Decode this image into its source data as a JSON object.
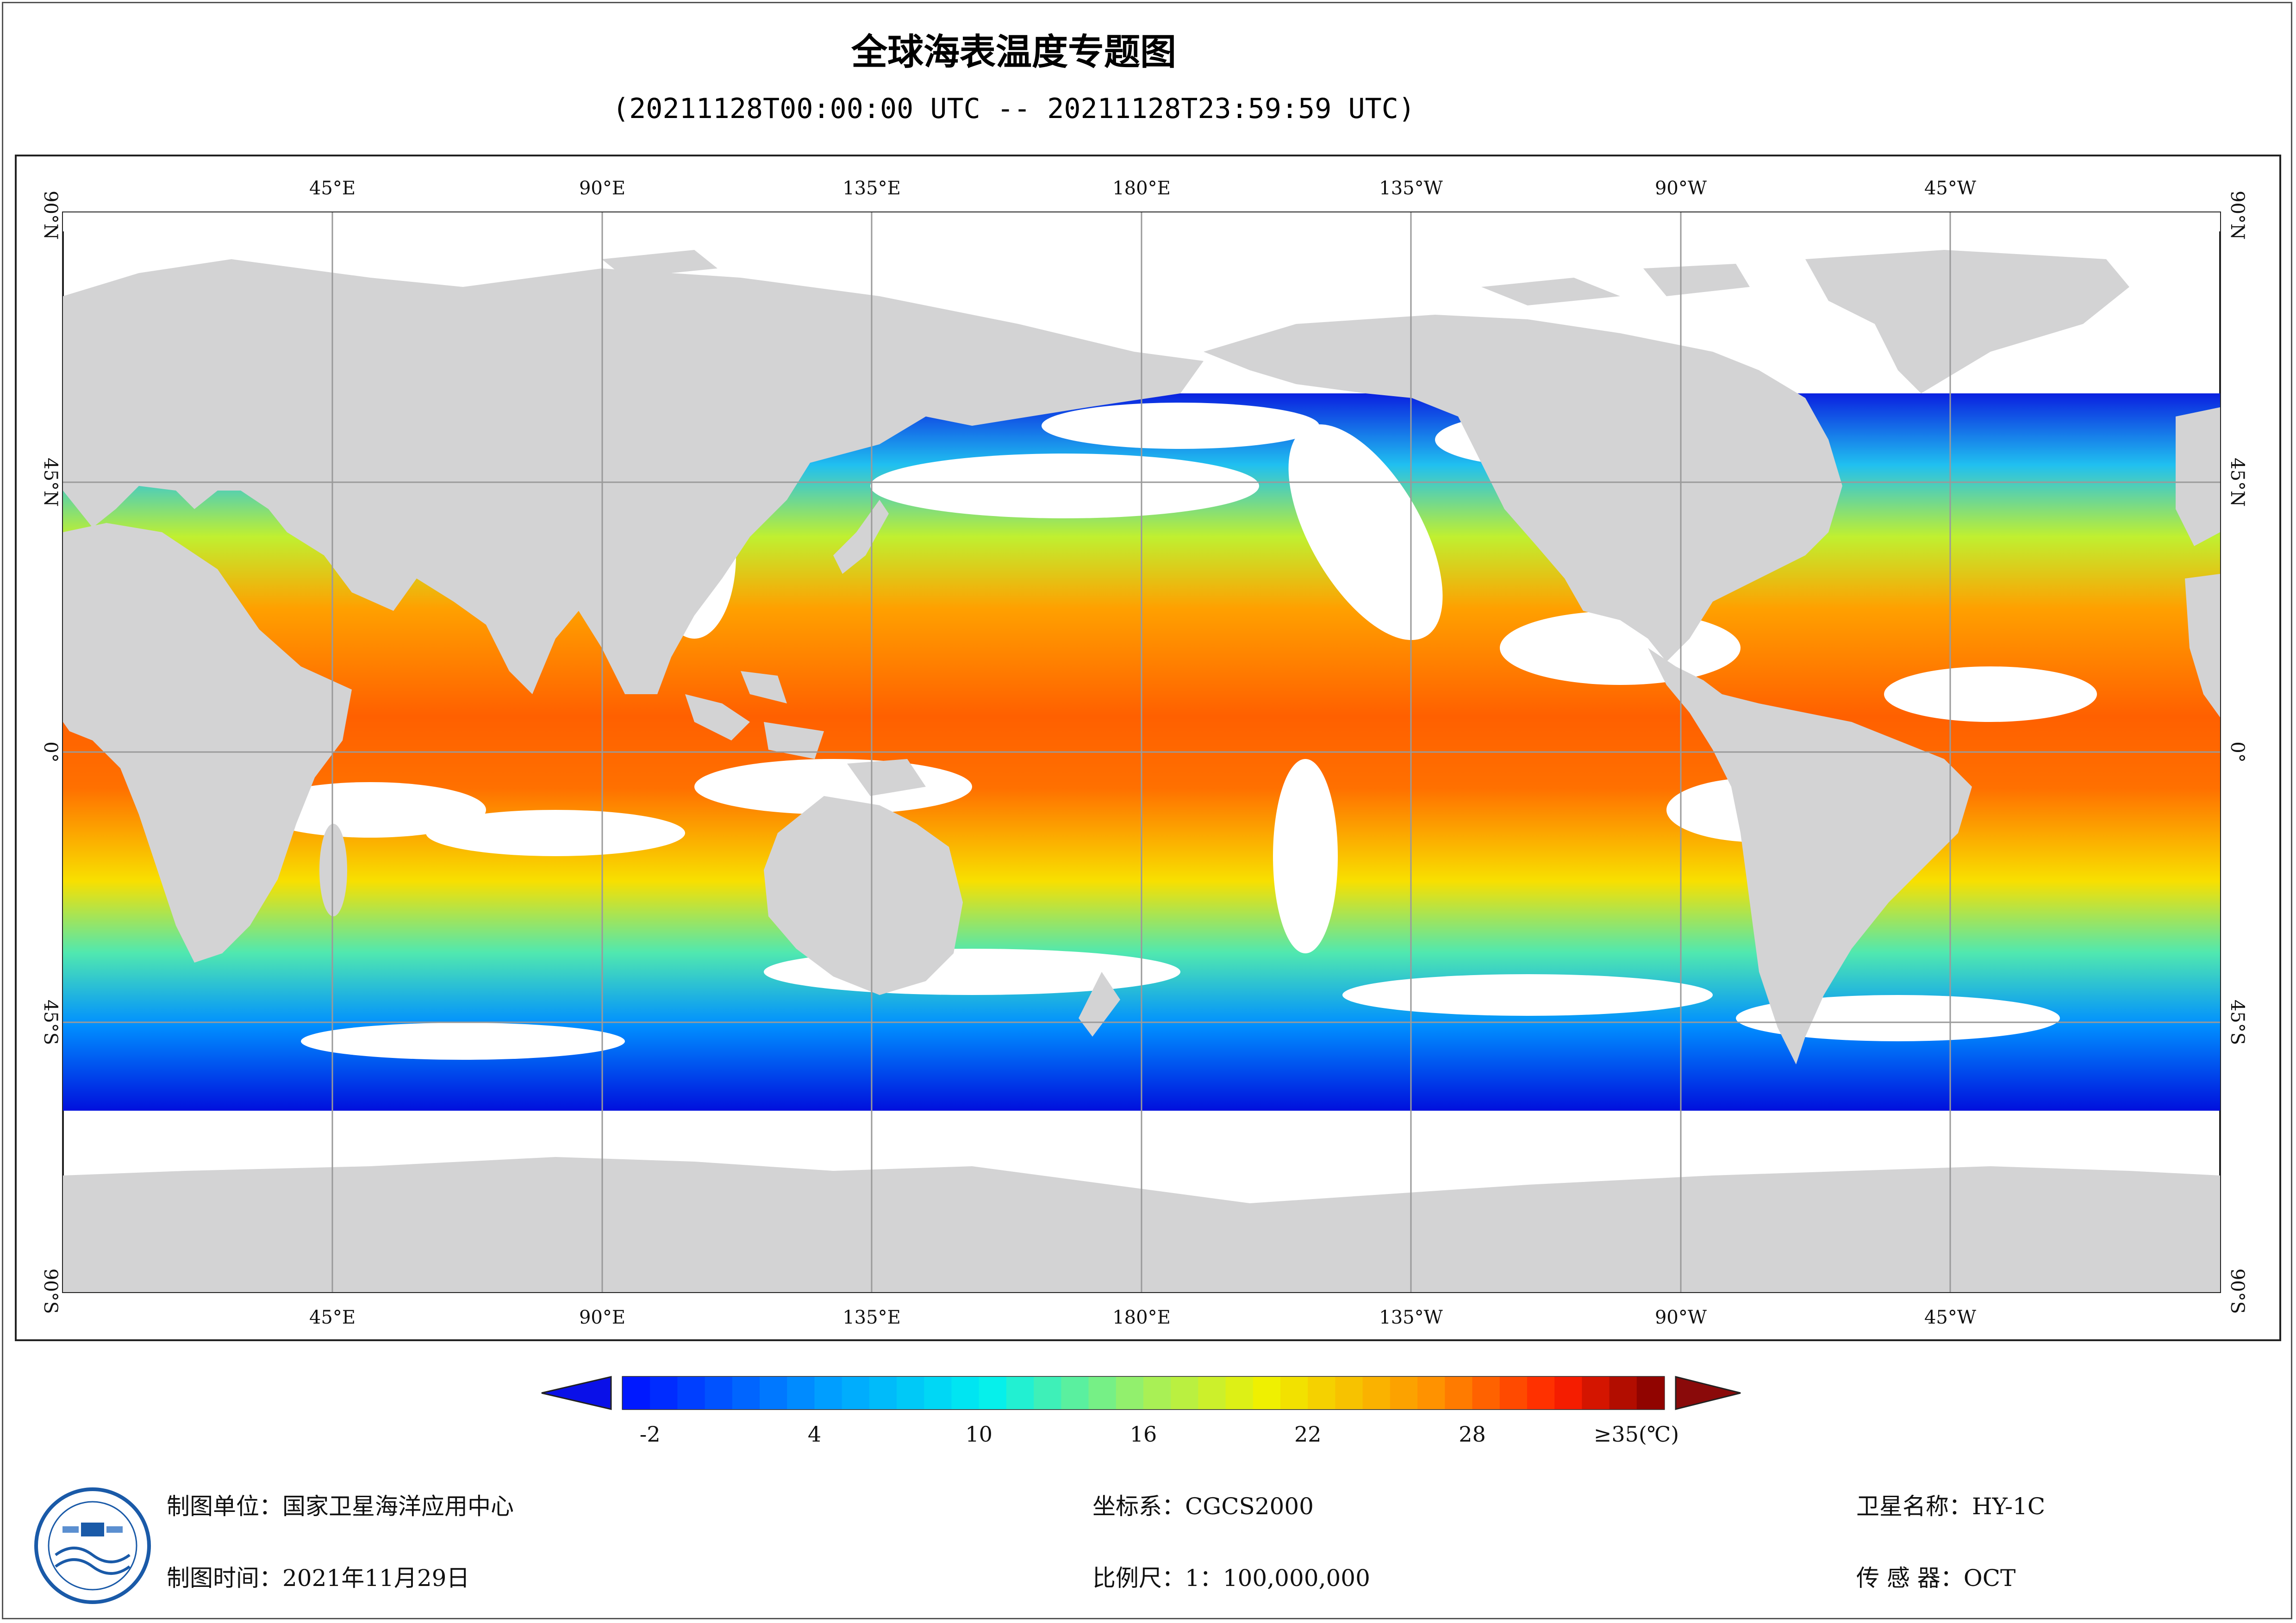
{
  "header": {
    "title": "全球海表温度专题图",
    "time_range": "(20211128T00:00:00 UTC -- 20211128T23:59:59 UTC)"
  },
  "map": {
    "top_lon_labels": [
      "45°E",
      "90°E",
      "135°E",
      "180°E",
      "135°W",
      "90°W",
      "45°W"
    ],
    "bottom_lon_labels": [
      "45°E",
      "90°E",
      "135°E",
      "180°E",
      "135°W",
      "90°W",
      "45°W"
    ],
    "lat_labels": [
      "90°N",
      "45°N",
      "0°",
      "45°S",
      "90°S"
    ],
    "land_color": "#d3d3d4",
    "no_data_color": "#ffffff",
    "grid_color": "#9a9a9a"
  },
  "colorbar": {
    "min": -3,
    "max": 35,
    "tick_labels": [
      "-2",
      "4",
      "10",
      "16",
      "22",
      "28",
      "≥35(℃)"
    ],
    "tick_values": [
      -2,
      4,
      10,
      16,
      22,
      28,
      35
    ],
    "colormap": "jet",
    "under_color": "#0a10e8",
    "over_color": "#8a0a0a"
  },
  "footer": {
    "producer": "制图单位：国家卫星海洋应用中心",
    "date": "制图时间：2021年11月29日",
    "crs": "坐标系：CGCS2000",
    "scale": "比例尺：1：100,000,000",
    "satellite": "卫星名称：HY-1C",
    "sensor": "传 感 器：OCT"
  },
  "logo_icon": "nsoas-logo-icon"
}
